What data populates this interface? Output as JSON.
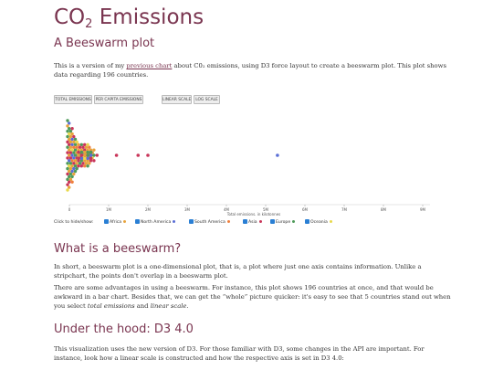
{
  "page": {
    "title_main": "CO",
    "title_sub": "2",
    "title_rest": " Emissions",
    "subtitle": "A Beeswarm plot",
    "intro_before": "This is a version of my ",
    "intro_link": "previous chart",
    "intro_after": " about C0₂ emissions, using D3 force layout to create a beeswarm plot. This plot shows data regarding 196 countries."
  },
  "controls": {
    "total_emissions": "TOTAL EMISSIONS",
    "per_capita": "PER CAPITA EMISSIONS",
    "linear_scale": "LINEAR SCALE",
    "log_scale": "LOG SCALE"
  },
  "legend": {
    "label": "Click to hide/show:",
    "items": [
      {
        "name": "Africa",
        "color": "#e8a33c"
      },
      {
        "name": "North America",
        "color": "#5b6fd6"
      },
      {
        "name": "South America",
        "color": "#f07f3c"
      },
      {
        "name": "Asia",
        "color": "#c9365a"
      },
      {
        "name": "Europe",
        "color": "#4e9a5a"
      },
      {
        "name": "Oceania",
        "color": "#e8d94c"
      }
    ]
  },
  "chart_data": {
    "type": "scatter",
    "subtype": "beeswarm",
    "xlabel": "Total emissions, in kilotonnes",
    "xlim": [
      0,
      10000000
    ],
    "ticks": [
      {
        "value": 0,
        "label": "0"
      },
      {
        "value": 1000000,
        "label": "1M"
      },
      {
        "value": 2000000,
        "label": "2M"
      },
      {
        "value": 3000000,
        "label": "3M"
      },
      {
        "value": 4000000,
        "label": "4M"
      },
      {
        "value": 5000000,
        "label": "5M"
      },
      {
        "value": 6000000,
        "label": "6M"
      },
      {
        "value": 7000000,
        "label": "7M"
      },
      {
        "value": 8000000,
        "label": "8M"
      },
      {
        "value": 9000000,
        "label": "9M"
      }
    ],
    "count": 196,
    "outliers": [
      {
        "x": 1200000,
        "region": "Asia"
      },
      {
        "x": 1750000,
        "region": "Asia"
      },
      {
        "x": 2000000,
        "region": "Asia"
      },
      {
        "x": 5300000,
        "region": "North America"
      },
      {
        "x": 9800000,
        "region": "Asia"
      }
    ]
  },
  "sections": {
    "h_beeswarm": "What is a beeswarm?",
    "p1": "In short, a beeswarm plot is a one-dimensional plot, that is, a plot where just one axis contains information. Unlike a stripchart, the points don't overlap in a beeswarm plot.",
    "p2_a": "There are some advantages in using a beeswarm. For instance, this plot shows 196 countries at once, and that would be awkward in a bar chart. Besides that, we can get the “whole” picture quicker: it's easy to see that 5 countries stand out when you select ",
    "p2_em1": "total emissions",
    "p2_b": " and ",
    "p2_em2": "linear scale",
    "p2_c": ".",
    "h_hood": "Under the hood: D3 4.0",
    "p3": "This visualization uses the new version of D3. For those familiar with D3, some changes in the API are important. For instance, look how a linear scale is constructed and how the respective axis is set in D3 4.0:"
  }
}
